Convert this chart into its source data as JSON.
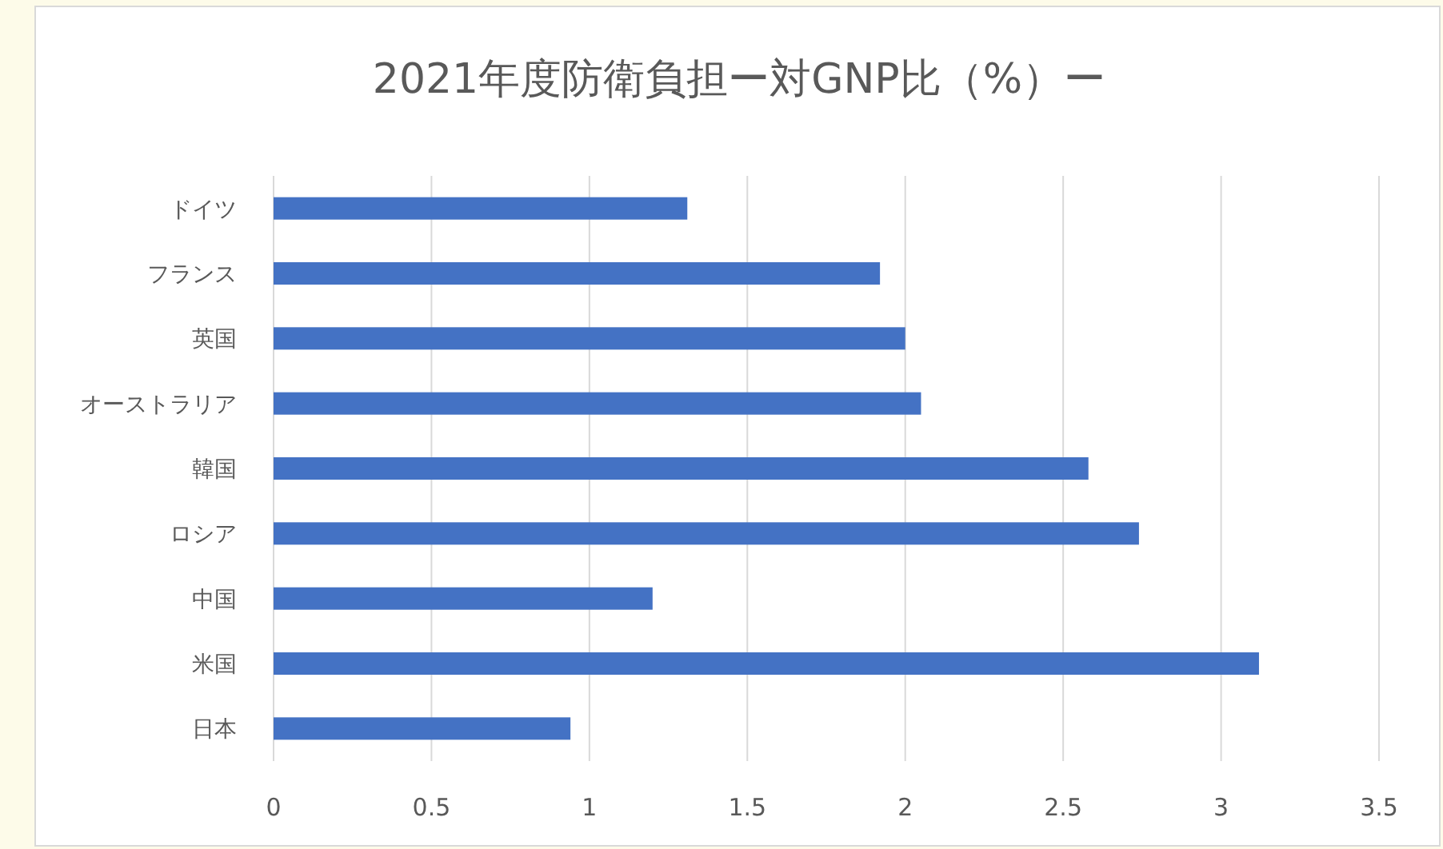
{
  "chart_data": {
    "type": "bar",
    "orientation": "horizontal",
    "title": "2021年度防衛負担ー対GNP比（%）ー",
    "categories": [
      "ドイツ",
      "フランス",
      "英国",
      "オーストラリア",
      "韓国",
      "ロシア",
      "中国",
      "米国",
      "日本"
    ],
    "values": [
      1.31,
      1.92,
      2.0,
      2.05,
      2.58,
      2.74,
      1.2,
      3.12,
      0.94
    ],
    "color": "#4472c4",
    "xlim": [
      0,
      3.5
    ],
    "xticks": [
      0,
      0.5,
      1,
      1.5,
      2,
      2.5,
      3,
      3.5
    ],
    "grid": "x"
  }
}
